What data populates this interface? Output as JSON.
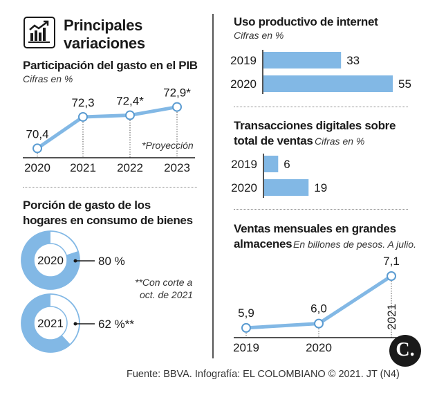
{
  "header": {
    "title_line1": "Principales",
    "title_line2": "variaciones",
    "icon": "bar-chart-growth-icon"
  },
  "colors": {
    "accent": "#82b8e5",
    "accent_dark": "#5a9bd1",
    "text": "#1a1a1a",
    "white": "#ffffff"
  },
  "gasto_pib": {
    "title": "Participación del gasto en el PIB",
    "subtitle": "Cifras en %",
    "note": "*Proyección"
  },
  "hogares": {
    "title_line1": "Porción de gasto de los",
    "title_line2": "hogares en consumo de bienes",
    "note_line1": "**Con corte a",
    "note_line2": "oct. de 2021"
  },
  "internet": {
    "title": "Uso productivo de internet",
    "subtitle": "Cifras en %"
  },
  "digitales": {
    "title_line1": "Transacciones digitales sobre",
    "title_line2": "total de ventas",
    "subtitle": "Cifras en %"
  },
  "almacenes": {
    "title_line1": "Ventas mensuales en grandes",
    "title_line2": "almacenes",
    "subtitle": "En billones de pesos. A julio."
  },
  "footer": {
    "source": "Fuente: BBVA. Infografía: EL COLOMBIANO © 2021. JT (N4)",
    "logo_letter": "C."
  },
  "chart_data": [
    {
      "id": "gasto_pib",
      "type": "line",
      "title": "Participación del gasto en el PIB",
      "subtitle": "Cifras en %",
      "categories": [
        "2020",
        "2021",
        "2022",
        "2023"
      ],
      "values": [
        70.4,
        72.3,
        72.4,
        72.9
      ],
      "data_labels": [
        "70,4",
        "72,3",
        "72,4*",
        "72,9*"
      ],
      "ylim": [
        70.0,
        73.3
      ]
    },
    {
      "id": "hogares",
      "type": "pie",
      "title": "Porción de gasto de los hogares en consumo de bienes",
      "categories": [
        "2020",
        "2021"
      ],
      "values": [
        80,
        62
      ],
      "data_labels": [
        "80 %",
        "62 %**"
      ]
    },
    {
      "id": "internet",
      "type": "bar",
      "title": "Uso productivo de internet",
      "subtitle": "Cifras en %",
      "categories": [
        "2019",
        "2020"
      ],
      "values": [
        33,
        55
      ],
      "data_labels": [
        "33",
        "55"
      ],
      "xlim": [
        0,
        55
      ]
    },
    {
      "id": "digitales",
      "type": "bar",
      "title": "Transacciones digitales sobre total de ventas",
      "subtitle": "Cifras en %",
      "categories": [
        "2019",
        "2020"
      ],
      "values": [
        6,
        19
      ],
      "data_labels": [
        "6",
        "19"
      ],
      "xlim": [
        0,
        55
      ]
    },
    {
      "id": "almacenes",
      "type": "line",
      "title": "Ventas mensuales en grandes almacenes",
      "subtitle": "En billones de pesos. A julio.",
      "categories": [
        "2019",
        "2020",
        "2021"
      ],
      "values": [
        5.9,
        6.0,
        7.1
      ],
      "data_labels": [
        "5,9",
        "6,0",
        "7,1"
      ],
      "ylim": [
        5.85,
        7.1
      ]
    }
  ]
}
